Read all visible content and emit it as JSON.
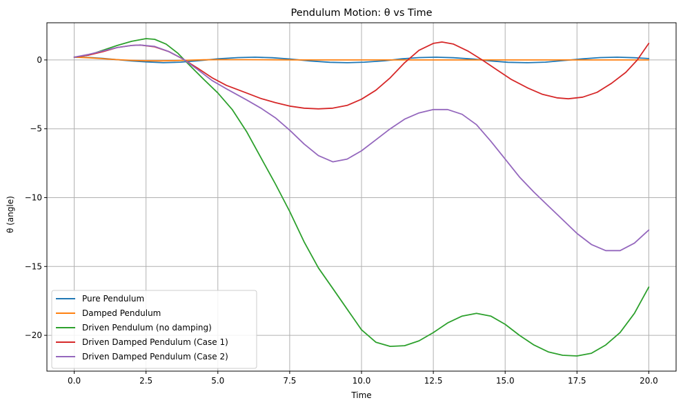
{
  "chart_data": {
    "type": "line",
    "title": "Pendulum Motion: θ vs Time",
    "xlabel": "Time",
    "ylabel": "θ (angle)",
    "xlim": [
      -0.95,
      20.95
    ],
    "ylim": [
      -22.6,
      2.7
    ],
    "xticks": [
      0.0,
      2.5,
      5.0,
      7.5,
      10.0,
      12.5,
      15.0,
      17.5,
      20.0
    ],
    "xtick_labels": [
      "0.0",
      "2.5",
      "5.0",
      "7.5",
      "10.0",
      "12.5",
      "15.0",
      "17.5",
      "20.0"
    ],
    "yticks": [
      0,
      -5,
      -10,
      -15,
      -20
    ],
    "ytick_labels": [
      "0",
      "−5",
      "−10",
      "−15",
      "−20"
    ],
    "grid": true,
    "legend_position": "lower-left",
    "series": [
      {
        "name": "Pure Pendulum",
        "color": "#1f77b4",
        "points": [
          [
            0,
            0.2
          ],
          [
            0.5,
            0.18
          ],
          [
            1,
            0.11
          ],
          [
            1.5,
            0.02
          ],
          [
            2,
            -0.07
          ],
          [
            2.5,
            -0.14
          ],
          [
            3.1,
            -0.2
          ],
          [
            3.7,
            -0.16
          ],
          [
            4.3,
            -0.06
          ],
          [
            5,
            0.08
          ],
          [
            5.7,
            0.17
          ],
          [
            6.3,
            0.2
          ],
          [
            6.9,
            0.16
          ],
          [
            7.5,
            0.07
          ],
          [
            8.2,
            -0.07
          ],
          [
            8.9,
            -0.17
          ],
          [
            9.5,
            -0.2
          ],
          [
            10.1,
            -0.16
          ],
          [
            10.8,
            -0.06
          ],
          [
            11.4,
            0.08
          ],
          [
            12,
            0.17
          ],
          [
            12.6,
            0.2
          ],
          [
            13.2,
            0.16
          ],
          [
            13.9,
            0.06
          ],
          [
            14.5,
            -0.07
          ],
          [
            15.1,
            -0.17
          ],
          [
            15.8,
            -0.2
          ],
          [
            16.4,
            -0.16
          ],
          [
            17,
            -0.05
          ],
          [
            17.7,
            0.08
          ],
          [
            18.3,
            0.17
          ],
          [
            18.9,
            0.2
          ],
          [
            19.5,
            0.16
          ],
          [
            20,
            0.1
          ]
        ]
      },
      {
        "name": "Damped Pendulum",
        "color": "#ff7f0e",
        "points": [
          [
            0,
            0.2
          ],
          [
            0.5,
            0.16
          ],
          [
            1,
            0.09
          ],
          [
            1.5,
            0.02
          ],
          [
            2,
            -0.03
          ],
          [
            2.5,
            -0.06
          ],
          [
            3,
            -0.07
          ],
          [
            3.5,
            -0.05
          ],
          [
            4,
            -0.02
          ],
          [
            4.5,
            0.01
          ],
          [
            5,
            0.02
          ],
          [
            6,
            0.02
          ],
          [
            7,
            0.01
          ],
          [
            8,
            0
          ],
          [
            10,
            0
          ],
          [
            12,
            0
          ],
          [
            14,
            0
          ],
          [
            16,
            0
          ],
          [
            18,
            0
          ],
          [
            20,
            0
          ]
        ]
      },
      {
        "name": "Driven Pendulum (no damping)",
        "color": "#2ca02c",
        "points": [
          [
            0,
            0.2
          ],
          [
            0.5,
            0.35
          ],
          [
            1,
            0.7
          ],
          [
            1.5,
            1.05
          ],
          [
            2,
            1.35
          ],
          [
            2.5,
            1.55
          ],
          [
            2.8,
            1.5
          ],
          [
            3.2,
            1.15
          ],
          [
            3.6,
            0.5
          ],
          [
            4,
            -0.35
          ],
          [
            4.5,
            -1.4
          ],
          [
            5,
            -2.4
          ],
          [
            5.5,
            -3.6
          ],
          [
            6,
            -5.2
          ],
          [
            6.5,
            -7.1
          ],
          [
            7,
            -9
          ],
          [
            7.5,
            -11
          ],
          [
            8,
            -13.2
          ],
          [
            8.5,
            -15.1
          ],
          [
            9,
            -16.6
          ],
          [
            9.5,
            -18.1
          ],
          [
            10,
            -19.6
          ],
          [
            10.5,
            -20.5
          ],
          [
            11,
            -20.8
          ],
          [
            11.5,
            -20.75
          ],
          [
            12,
            -20.4
          ],
          [
            12.5,
            -19.8
          ],
          [
            13,
            -19.1
          ],
          [
            13.5,
            -18.6
          ],
          [
            14,
            -18.4
          ],
          [
            14.5,
            -18.6
          ],
          [
            15,
            -19.2
          ],
          [
            15.5,
            -20
          ],
          [
            16,
            -20.7
          ],
          [
            16.5,
            -21.2
          ],
          [
            17,
            -21.45
          ],
          [
            17.5,
            -21.5
          ],
          [
            18,
            -21.3
          ],
          [
            18.5,
            -20.7
          ],
          [
            19,
            -19.8
          ],
          [
            19.5,
            -18.4
          ],
          [
            20,
            -16.5
          ]
        ]
      },
      {
        "name": "Driven Damped Pendulum (Case 1)",
        "color": "#d62728",
        "points": [
          [
            0,
            0.2
          ],
          [
            0.5,
            0.35
          ],
          [
            1,
            0.6
          ],
          [
            1.5,
            0.9
          ],
          [
            2,
            1.05
          ],
          [
            2.3,
            1.08
          ],
          [
            2.8,
            0.95
          ],
          [
            3.3,
            0.6
          ],
          [
            3.8,
            0.05
          ],
          [
            4.3,
            -0.6
          ],
          [
            4.8,
            -1.3
          ],
          [
            5.3,
            -1.85
          ],
          [
            6,
            -2.4
          ],
          [
            6.5,
            -2.8
          ],
          [
            7,
            -3.1
          ],
          [
            7.5,
            -3.35
          ],
          [
            8,
            -3.5
          ],
          [
            8.5,
            -3.55
          ],
          [
            9,
            -3.5
          ],
          [
            9.5,
            -3.3
          ],
          [
            10,
            -2.85
          ],
          [
            10.5,
            -2.2
          ],
          [
            11,
            -1.3
          ],
          [
            11.5,
            -0.2
          ],
          [
            12,
            0.7
          ],
          [
            12.5,
            1.2
          ],
          [
            12.8,
            1.3
          ],
          [
            13.2,
            1.15
          ],
          [
            13.7,
            0.65
          ],
          [
            14.2,
            0
          ],
          [
            14.7,
            -0.7
          ],
          [
            15.2,
            -1.4
          ],
          [
            15.8,
            -2.05
          ],
          [
            16.3,
            -2.5
          ],
          [
            16.8,
            -2.75
          ],
          [
            17.2,
            -2.82
          ],
          [
            17.7,
            -2.7
          ],
          [
            18.2,
            -2.35
          ],
          [
            18.7,
            -1.7
          ],
          [
            19.2,
            -0.9
          ],
          [
            19.6,
            0
          ],
          [
            20,
            1.2
          ]
        ]
      },
      {
        "name": "Driven Damped Pendulum (Case 2)",
        "color": "#9467bd",
        "points": [
          [
            0,
            0.2
          ],
          [
            0.5,
            0.4
          ],
          [
            1,
            0.65
          ],
          [
            1.5,
            0.9
          ],
          [
            2,
            1.05
          ],
          [
            2.3,
            1.08
          ],
          [
            2.8,
            0.98
          ],
          [
            3.3,
            0.6
          ],
          [
            3.8,
            0.05
          ],
          [
            4.3,
            -0.7
          ],
          [
            4.8,
            -1.5
          ],
          [
            5.3,
            -2.1
          ],
          [
            6,
            -2.9
          ],
          [
            6.5,
            -3.5
          ],
          [
            7,
            -4.2
          ],
          [
            7.5,
            -5.1
          ],
          [
            8,
            -6.1
          ],
          [
            8.5,
            -6.95
          ],
          [
            9,
            -7.4
          ],
          [
            9.5,
            -7.2
          ],
          [
            10,
            -6.6
          ],
          [
            10.5,
            -5.8
          ],
          [
            11,
            -5
          ],
          [
            11.5,
            -4.3
          ],
          [
            12,
            -3.85
          ],
          [
            12.5,
            -3.6
          ],
          [
            13,
            -3.6
          ],
          [
            13.5,
            -3.95
          ],
          [
            14,
            -4.7
          ],
          [
            14.5,
            -5.9
          ],
          [
            15,
            -7.2
          ],
          [
            15.5,
            -8.5
          ],
          [
            16,
            -9.6
          ],
          [
            16.5,
            -10.6
          ],
          [
            17,
            -11.6
          ],
          [
            17.5,
            -12.6
          ],
          [
            18,
            -13.4
          ],
          [
            18.5,
            -13.85
          ],
          [
            19,
            -13.85
          ],
          [
            19.5,
            -13.3
          ],
          [
            20,
            -12.35
          ]
        ]
      }
    ]
  }
}
